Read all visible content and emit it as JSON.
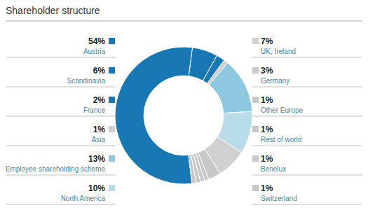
{
  "chart_data": {
    "type": "pie",
    "title": "Shareholder structure",
    "categories": [
      "Austria",
      "Scandinavia",
      "France",
      "Asia",
      "Employee shareholding scheme",
      "North America",
      "UK, Ireland",
      "Germany",
      "Other Europe",
      "Rest of world",
      "Benelux",
      "Switzerland"
    ],
    "values": [
      54,
      6,
      2,
      1,
      13,
      10,
      7,
      3,
      1,
      1,
      1,
      1
    ],
    "value_labels": [
      "54%",
      "6%",
      "2%",
      "1%",
      "13%",
      "10%",
      "7%",
      "3%",
      "1%",
      "1%",
      "1%",
      "1%"
    ],
    "colors": [
      "#1878b4",
      "#1878b4",
      "#1878b4",
      "#d0d0d0",
      "#8ec8e0",
      "#b8dcea",
      "#d0d0d0",
      "#c8c8c8",
      "#c8c8c8",
      "#c8c8c8",
      "#c8c8c8",
      "#c8c8c8"
    ],
    "data_labels": true
  }
}
